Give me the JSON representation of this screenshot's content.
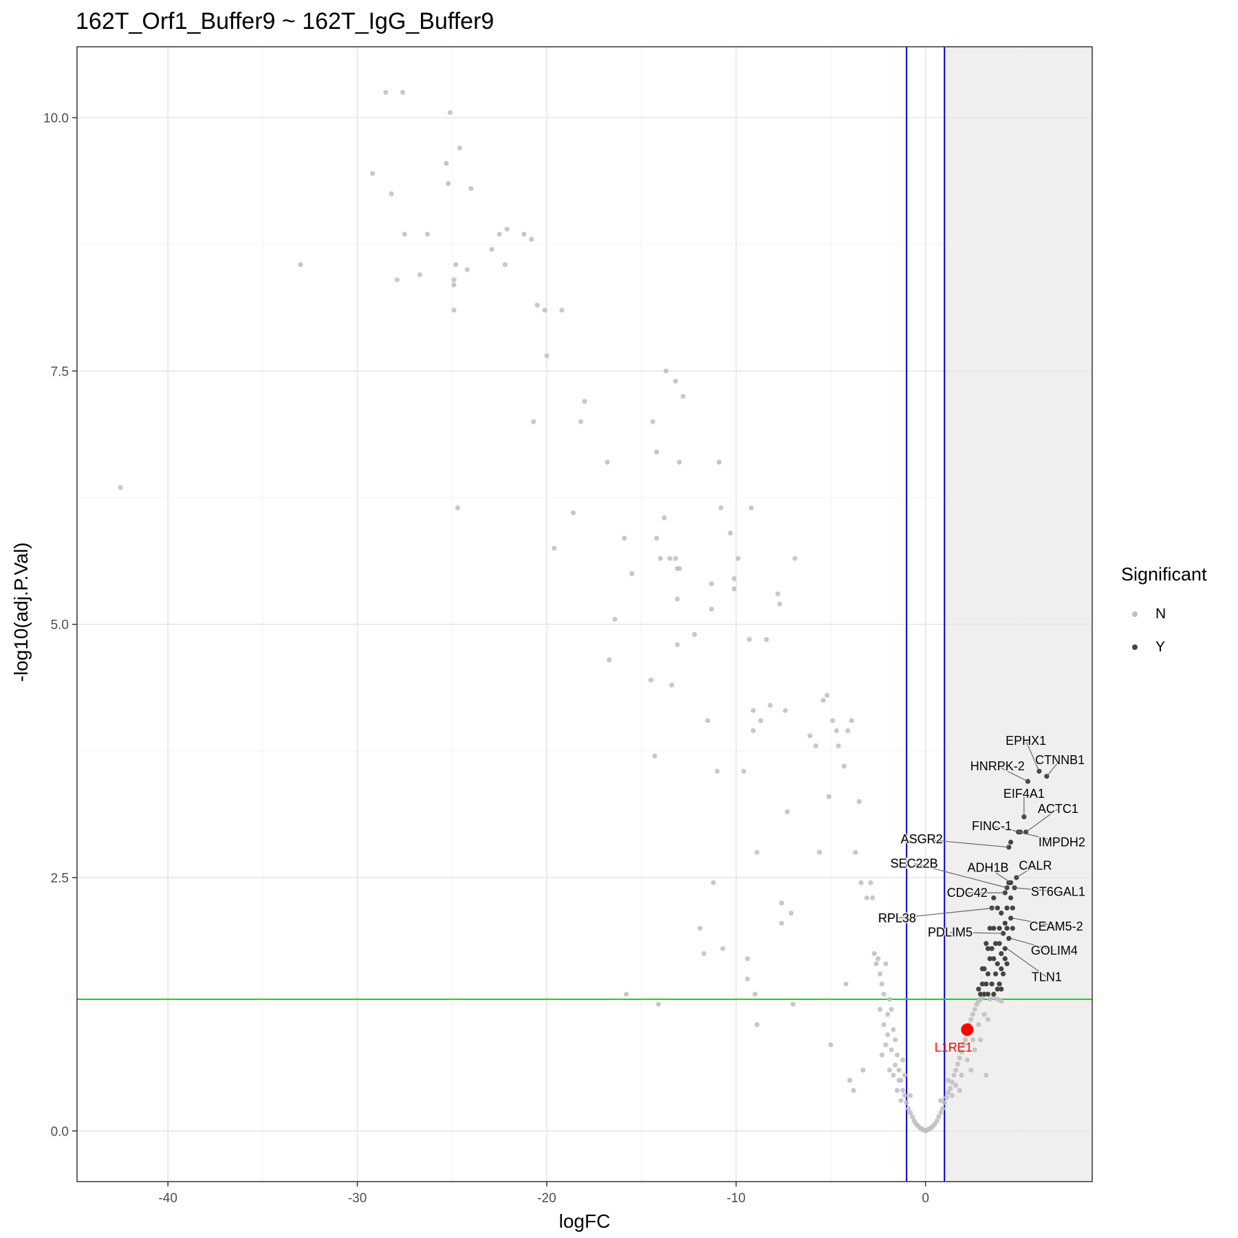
{
  "chart_data": {
    "type": "scatter",
    "title": "162T_Orf1_Buffer9 ~ 162T_IgG_Buffer9",
    "xlabel": "logFC",
    "ylabel": "-log10(adj.P.Val)",
    "xlim": [
      -44.8,
      8.8
    ],
    "ylim": [
      -0.5,
      10.7
    ],
    "x_ticks": [
      "-40",
      "-30",
      "-20",
      "-10",
      "0"
    ],
    "y_ticks": [
      "0.0",
      "2.5",
      "5.0",
      "7.5",
      "10.0"
    ],
    "grid": true,
    "shaded_region": {
      "x_from": 1,
      "x_to": 8.8,
      "y_from": 1.3,
      "y_to": 10.7
    },
    "vlines": [
      -1,
      1
    ],
    "hline": 1.3,
    "legend": {
      "title": "Significant",
      "position": "right",
      "entries": [
        "N",
        "Y"
      ]
    },
    "colors": {
      "N": "#bebebe",
      "Y": "#444444",
      "highlight": "#ff0000",
      "vline": "#0000cc",
      "hline": "#00dd00",
      "shade": "#efefef"
    },
    "series": [
      {
        "name": "N",
        "points": [
          [
            -42.5,
            6.35
          ],
          [
            -33,
            8.55
          ],
          [
            -29.2,
            9.45
          ],
          [
            -28.5,
            10.25
          ],
          [
            -28.2,
            9.25
          ],
          [
            -27.9,
            8.4
          ],
          [
            -27.6,
            10.25
          ],
          [
            -27.5,
            8.85
          ],
          [
            -26.7,
            8.45
          ],
          [
            -26.3,
            8.85
          ],
          [
            -25.3,
            9.55
          ],
          [
            -25.2,
            9.35
          ],
          [
            -25.1,
            10.05
          ],
          [
            -24.9,
            8.4
          ],
          [
            -24.9,
            8.35
          ],
          [
            -24.9,
            8.1
          ],
          [
            -24.8,
            8.55
          ],
          [
            -24.7,
            6.15
          ],
          [
            -24.6,
            9.7
          ],
          [
            -24.2,
            8.5
          ],
          [
            -24,
            9.3
          ],
          [
            -22.9,
            8.7
          ],
          [
            -22.5,
            8.85
          ],
          [
            -22.2,
            8.55
          ],
          [
            -22.1,
            8.9
          ],
          [
            -21.2,
            8.85
          ],
          [
            -20.8,
            8.8
          ],
          [
            -20.7,
            7
          ],
          [
            -20.5,
            8.15
          ],
          [
            -20.1,
            8.1
          ],
          [
            -20,
            7.65
          ],
          [
            -19.6,
            5.75
          ],
          [
            -19.2,
            8.1
          ],
          [
            -18.6,
            6.1
          ],
          [
            -18.2,
            7
          ],
          [
            -18,
            7.2
          ],
          [
            -16.8,
            6.6
          ],
          [
            -16.7,
            4.65
          ],
          [
            -16.4,
            5.05
          ],
          [
            -15.9,
            5.85
          ],
          [
            -15.8,
            1.35
          ],
          [
            -15.5,
            5.5
          ],
          [
            -14.5,
            4.45
          ],
          [
            -14.4,
            7
          ],
          [
            -14.3,
            3.7
          ],
          [
            -14.2,
            6.7
          ],
          [
            -14.2,
            5.85
          ],
          [
            -14.1,
            1.25
          ],
          [
            -14,
            5.65
          ],
          [
            -13.8,
            6.05
          ],
          [
            -13.7,
            7.5
          ],
          [
            -13.5,
            5.65
          ],
          [
            -13.4,
            4.4
          ],
          [
            -13.2,
            5.65
          ],
          [
            -13.2,
            7.4
          ],
          [
            -13.1,
            5.55
          ],
          [
            -13.1,
            5.25
          ],
          [
            -13.1,
            4.8
          ],
          [
            -13,
            5.55
          ],
          [
            -13,
            6.6
          ],
          [
            -12.8,
            7.25
          ],
          [
            -12.2,
            4.9
          ],
          [
            -11.9,
            2
          ],
          [
            -11.7,
            1.75
          ],
          [
            -11.5,
            4.05
          ],
          [
            -11.3,
            5.4
          ],
          [
            -11.3,
            5.15
          ],
          [
            -11.2,
            2.45
          ],
          [
            -11,
            3.55
          ],
          [
            -10.9,
            6.6
          ],
          [
            -10.8,
            6.15
          ],
          [
            -10.7,
            1.8
          ],
          [
            -10.3,
            5.9
          ],
          [
            -10.1,
            5.45
          ],
          [
            -10.1,
            5.35
          ],
          [
            -9.9,
            5.65
          ],
          [
            -9.6,
            3.55
          ],
          [
            -9.4,
            1.7
          ],
          [
            -9.4,
            1.5
          ],
          [
            -9.3,
            4.85
          ],
          [
            -9.2,
            6.15
          ],
          [
            -9.1,
            4.15
          ],
          [
            -9.1,
            3.95
          ],
          [
            -9,
            1.35
          ],
          [
            -8.9,
            2.75
          ],
          [
            -8.9,
            1.05
          ],
          [
            -8.7,
            4.05
          ],
          [
            -8.4,
            4.85
          ],
          [
            -8.2,
            4.2
          ],
          [
            -7.8,
            5.3
          ],
          [
            -7.7,
            5.2
          ],
          [
            -7.6,
            2.25
          ],
          [
            -7.6,
            2.05
          ],
          [
            -7.4,
            4.15
          ],
          [
            -7.3,
            3.15
          ],
          [
            -7.1,
            2.15
          ],
          [
            -7,
            1.25
          ],
          [
            -6.9,
            5.65
          ],
          [
            -6.1,
            3.9
          ],
          [
            -5.8,
            3.8
          ],
          [
            -5.6,
            2.75
          ],
          [
            -5.4,
            4.25
          ],
          [
            -5.2,
            4.3
          ],
          [
            -5.1,
            3.3
          ],
          [
            -5,
            0.85
          ],
          [
            -4.9,
            4.05
          ],
          [
            -4.7,
            3.95
          ],
          [
            -4.6,
            3.8
          ],
          [
            -4.3,
            3.6
          ],
          [
            -4.2,
            1.45
          ],
          [
            -4.1,
            3.95
          ],
          [
            -4,
            0.5
          ],
          [
            -3.9,
            4.05
          ],
          [
            -3.8,
            0.4
          ],
          [
            -3.7,
            2.75
          ],
          [
            -3.5,
            3.25
          ],
          [
            -3.4,
            2.45
          ],
          [
            -3.3,
            0.6
          ],
          [
            -3.1,
            2.3
          ],
          [
            -2.9,
            2.45
          ],
          [
            -2.8,
            2.3
          ],
          [
            -2.7,
            1.75
          ],
          [
            -2.6,
            1.65
          ],
          [
            -2.5,
            1.7
          ],
          [
            -2.4,
            1.55
          ],
          [
            -2.3,
            1.45
          ],
          [
            -2.2,
            1.35
          ],
          [
            -2.1,
            1.65
          ],
          [
            -2,
            1.15
          ],
          [
            -1.9,
            1.3
          ],
          [
            -1.8,
            1.2
          ],
          [
            -1.7,
            1
          ],
          [
            -1.6,
            0.9
          ],
          [
            -1.5,
            0.75
          ],
          [
            -1.4,
            0.6
          ],
          [
            -1.3,
            0.5
          ],
          [
            -1.2,
            0.4
          ],
          [
            -1.1,
            0.35
          ],
          [
            -1,
            0.28
          ],
          [
            -0.9,
            0.22
          ],
          [
            -0.8,
            0.18
          ],
          [
            -0.7,
            0.14
          ],
          [
            -0.6,
            0.1
          ],
          [
            -0.5,
            0.07
          ],
          [
            -0.4,
            0.05
          ],
          [
            -0.3,
            0.03
          ],
          [
            -0.2,
            0.02
          ],
          [
            -0.1,
            0.01
          ],
          [
            0,
            0
          ],
          [
            0.1,
            0.01
          ],
          [
            0.2,
            0.02
          ],
          [
            0.3,
            0.03
          ],
          [
            0.4,
            0.05
          ],
          [
            0.5,
            0.07
          ],
          [
            0.6,
            0.1
          ],
          [
            0.7,
            0.14
          ],
          [
            0.8,
            0.18
          ],
          [
            0.9,
            0.22
          ],
          [
            1,
            0.28
          ],
          [
            1.1,
            0.33
          ],
          [
            1.2,
            0.38
          ],
          [
            1.3,
            0.42
          ],
          [
            1.4,
            0.48
          ],
          [
            1.5,
            0.55
          ],
          [
            1.6,
            0.6
          ],
          [
            1.7,
            0.66
          ],
          [
            1.8,
            0.72
          ],
          [
            1.9,
            0.78
          ],
          [
            2,
            0.85
          ],
          [
            2.1,
            0.9
          ],
          [
            2.2,
            0.95
          ],
          [
            2.3,
            1.05
          ],
          [
            2.4,
            1.1
          ],
          [
            2.5,
            1.15
          ],
          [
            2.6,
            1.2
          ],
          [
            2.7,
            1.25
          ],
          [
            2.8,
            1.28
          ],
          [
            2.9,
            1.3
          ],
          [
            3,
            1.32
          ],
          [
            3.2,
            1.35
          ],
          [
            3.4,
            1.3
          ],
          [
            3.6,
            1.32
          ],
          [
            3.8,
            1.3
          ],
          [
            4,
            1.28
          ],
          [
            1.9,
            0.55
          ],
          [
            2.2,
            0.7
          ],
          [
            2.5,
            0.9
          ],
          [
            2.8,
            1.05
          ],
          [
            3.1,
            1.15
          ],
          [
            1.6,
            0.45
          ],
          [
            1.4,
            0.35
          ],
          [
            2.4,
            0.6
          ],
          [
            3.2,
            0.55
          ],
          [
            2.6,
            0.8
          ],
          [
            -1.2,
            0.7
          ],
          [
            -1.4,
            0.5
          ],
          [
            -1.6,
            0.65
          ],
          [
            -1.8,
            0.8
          ],
          [
            -2,
            0.95
          ],
          [
            -2.2,
            1.05
          ],
          [
            -1.5,
            0.4
          ],
          [
            -1.1,
            0.55
          ],
          [
            -1.9,
            0.6
          ],
          [
            -2.1,
            0.85
          ],
          [
            -2.4,
            1.2
          ],
          [
            -1.3,
            0.3
          ],
          [
            -0.8,
            0.35
          ],
          [
            0.8,
            0.3
          ],
          [
            1.2,
            0.5
          ],
          [
            1.8,
            0.4
          ],
          [
            2.9,
            0.9
          ],
          [
            3.3,
            1.1
          ],
          [
            -2.3,
            0.75
          ],
          [
            -1.7,
            0.55
          ]
        ]
      },
      {
        "name": "Y",
        "points": [
          [
            6.4,
            3.5
          ],
          [
            6.0,
            3.55
          ],
          [
            5.4,
            3.45
          ],
          [
            5.2,
            3.1
          ],
          [
            5.3,
            2.95
          ],
          [
            5.0,
            2.95
          ],
          [
            4.9,
            2.95
          ],
          [
            4.5,
            2.85
          ],
          [
            4.4,
            2.8
          ],
          [
            4.8,
            2.5
          ],
          [
            4.5,
            2.45
          ],
          [
            4.7,
            2.4
          ],
          [
            4.4,
            2.45
          ],
          [
            4.3,
            2.4
          ],
          [
            4.2,
            2.35
          ],
          [
            4.5,
            2.3
          ],
          [
            4.6,
            2.2
          ],
          [
            4.3,
            2.2
          ],
          [
            3.6,
            2.3
          ],
          [
            3.5,
            2.2
          ],
          [
            3.8,
            2.2
          ],
          [
            4.0,
            2.15
          ],
          [
            4.2,
            2.05
          ],
          [
            4.5,
            2.1
          ],
          [
            4.6,
            2.0
          ],
          [
            4.3,
            2.0
          ],
          [
            3.9,
            2.0
          ],
          [
            3.6,
            2.0
          ],
          [
            3.4,
            2.0
          ],
          [
            4.1,
            1.95
          ],
          [
            4.4,
            1.9
          ],
          [
            3.7,
            1.85
          ],
          [
            3.2,
            1.85
          ],
          [
            3.3,
            1.8
          ],
          [
            3.5,
            1.8
          ],
          [
            3.9,
            1.85
          ],
          [
            4.2,
            1.8
          ],
          [
            3.4,
            1.7
          ],
          [
            3.6,
            1.7
          ],
          [
            3.8,
            1.65
          ],
          [
            4.0,
            1.6
          ],
          [
            3.1,
            1.6
          ],
          [
            3.3,
            1.55
          ],
          [
            3.7,
            1.55
          ],
          [
            4.1,
            1.55
          ],
          [
            3.0,
            1.45
          ],
          [
            3.2,
            1.45
          ],
          [
            3.5,
            1.45
          ],
          [
            3.8,
            1.4
          ],
          [
            4.0,
            1.4
          ],
          [
            2.8,
            1.4
          ],
          [
            3.3,
            1.35
          ],
          [
            3.6,
            1.35
          ],
          [
            2.9,
            1.35
          ],
          [
            3.1,
            1.35
          ],
          [
            3.9,
            1.45
          ],
          [
            4.3,
            1.65
          ],
          [
            3.0,
            1.6
          ],
          [
            4.0,
            1.75
          ],
          [
            4.2,
            1.7
          ]
        ]
      }
    ],
    "highlight": {
      "label": "L1RE1",
      "x": 2.2,
      "y": 1.0
    },
    "labels": [
      {
        "text": "EPHX1",
        "x": 5.3,
        "y": 3.85,
        "px": 6.0,
        "py": 3.55
      },
      {
        "text": "CTNNB1",
        "x": 7.1,
        "y": 3.66,
        "px": 6.4,
        "py": 3.5
      },
      {
        "text": "HNRPK-2",
        "x": 3.8,
        "y": 3.6,
        "px": 5.4,
        "py": 3.45
      },
      {
        "text": "EIF4A1",
        "x": 5.2,
        "y": 3.33,
        "px": 5.2,
        "py": 3.1
      },
      {
        "text": "ACTC1",
        "x": 7.0,
        "y": 3.18,
        "px": 5.3,
        "py": 2.95
      },
      {
        "text": "FINC-1",
        "x": 3.5,
        "y": 3.01,
        "px": 5.0,
        "py": 2.95
      },
      {
        "text": "IMPDH2",
        "x": 7.2,
        "y": 2.85,
        "px": 4.9,
        "py": 2.95
      },
      {
        "text": "ASGR2",
        "x": -0.2,
        "y": 2.88,
        "px": 4.4,
        "py": 2.8
      },
      {
        "text": "CALR",
        "x": 5.8,
        "y": 2.62,
        "px": 4.8,
        "py": 2.5
      },
      {
        "text": "ADH1B",
        "x": 3.3,
        "y": 2.6,
        "px": 4.5,
        "py": 2.45
      },
      {
        "text": "SEC22B",
        "x": -0.6,
        "y": 2.64,
        "px": 4.3,
        "py": 2.4
      },
      {
        "text": "ST6GAL1",
        "x": 7.0,
        "y": 2.36,
        "px": 4.7,
        "py": 2.4
      },
      {
        "text": "CDC42",
        "x": 2.2,
        "y": 2.35,
        "px": 4.2,
        "py": 2.35
      },
      {
        "text": "RPL38",
        "x": -1.5,
        "y": 2.1,
        "px": 3.6,
        "py": 2.2
      },
      {
        "text": "CEAM5-2",
        "x": 6.9,
        "y": 2.02,
        "px": 4.6,
        "py": 2.1
      },
      {
        "text": "PDLIM5",
        "x": 1.3,
        "y": 1.96,
        "px": 4.1,
        "py": 1.95
      },
      {
        "text": "GOLIM4",
        "x": 6.8,
        "y": 1.78,
        "px": 4.5,
        "py": 1.9
      },
      {
        "text": "TLN1",
        "x": 6.4,
        "y": 1.52,
        "px": 4.3,
        "py": 1.8
      }
    ]
  }
}
